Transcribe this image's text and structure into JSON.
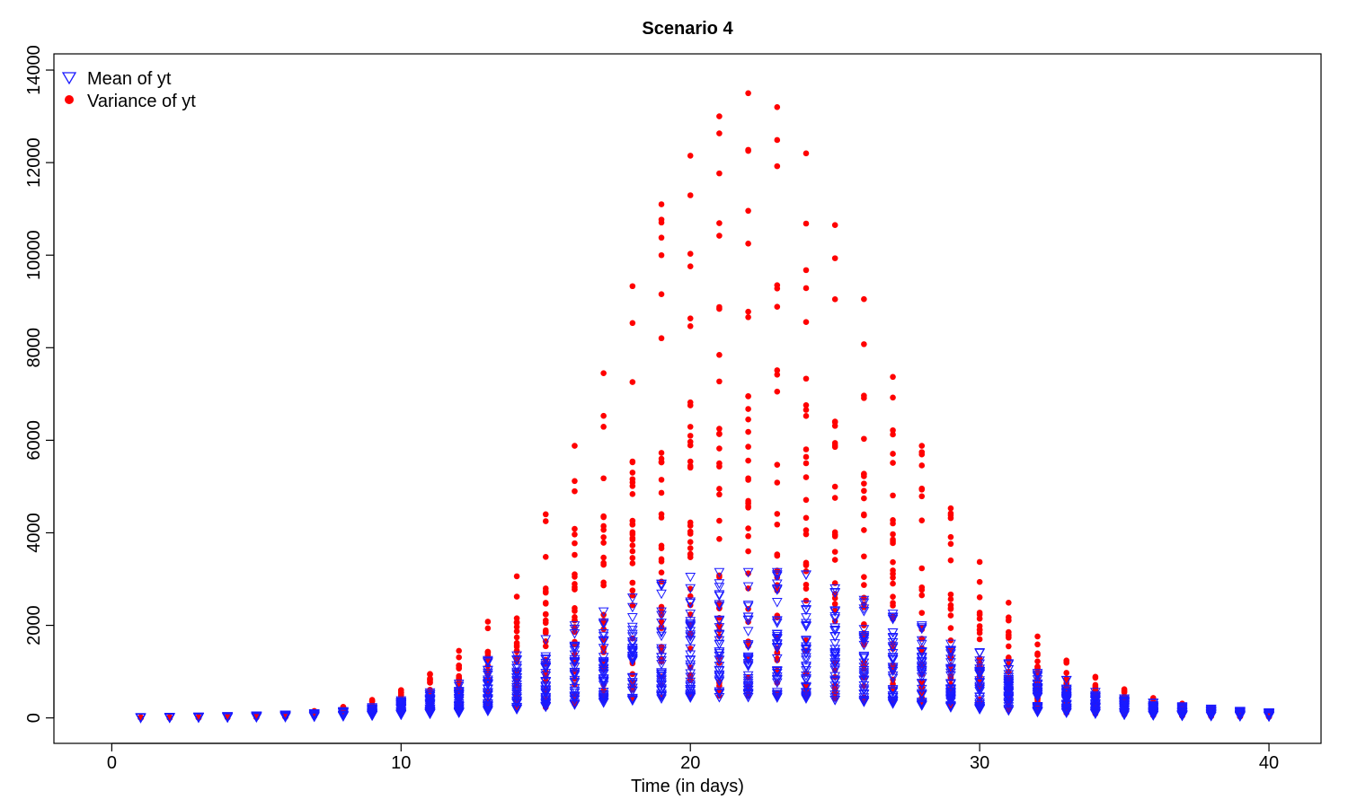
{
  "chart_data": {
    "type": "scatter",
    "title": "Scenario 4",
    "xlabel": "Time (in days)",
    "ylabel": "",
    "xlim": [
      -2,
      41.8
    ],
    "ylim": [
      -550,
      14350
    ],
    "xticks": [
      0,
      10,
      20,
      30,
      40
    ],
    "yticks": [
      0,
      2000,
      4000,
      6000,
      8000,
      10000,
      12000,
      14000
    ],
    "grid": false,
    "legend_position": "top-left",
    "days": [
      1,
      2,
      3,
      4,
      5,
      6,
      7,
      8,
      9,
      10,
      11,
      12,
      13,
      14,
      15,
      16,
      17,
      18,
      19,
      20,
      21,
      22,
      23,
      24,
      25,
      26,
      27,
      28,
      29,
      30,
      31,
      32,
      33,
      34,
      35,
      36,
      37,
      38,
      39,
      40
    ],
    "series": [
      {
        "name": "Mean of yt",
        "marker": "triangle-down-open",
        "color": "#1a1aff",
        "min": [
          5,
          6,
          8,
          11,
          15,
          20,
          28,
          38,
          52,
          70,
          90,
          115,
          150,
          190,
          240,
          290,
          330,
          380,
          420,
          440,
          450,
          450,
          440,
          420,
          390,
          350,
          310,
          270,
          230,
          190,
          160,
          130,
          110,
          90,
          70,
          55,
          45,
          40,
          35,
          30
        ],
        "max": [
          15,
          20,
          25,
          35,
          50,
          70,
          100,
          140,
          230,
          380,
          550,
          740,
          1250,
          1350,
          1700,
          2000,
          2300,
          2600,
          2900,
          3050,
          3150,
          3150,
          3150,
          3100,
          2800,
          2550,
          2250,
          2000,
          1600,
          1420,
          1180,
          970,
          820,
          560,
          420,
          330,
          250,
          200,
          150,
          120
        ],
        "dense_max": [
          12,
          18,
          25,
          35,
          50,
          70,
          100,
          140,
          200,
          290,
          400,
          520,
          780,
          930,
          1100,
          1300,
          1450,
          1650,
          1800,
          2000,
          2050,
          2100,
          2100,
          2000,
          1900,
          1750,
          1550,
          1400,
          1200,
          1000,
          800,
          650,
          550,
          450,
          350,
          270,
          210,
          170,
          130,
          110
        ]
      },
      {
        "name": "Variance of yt",
        "marker": "filled-circle",
        "color": "#ff0000",
        "min": [
          2,
          3,
          5,
          8,
          12,
          20,
          35,
          55,
          90,
          130,
          160,
          170,
          180,
          200,
          230,
          300,
          380,
          420,
          450,
          470,
          480,
          480,
          470,
          450,
          420,
          380,
          340,
          290,
          250,
          210,
          170,
          140,
          110,
          90,
          70,
          55,
          45,
          35,
          30,
          25
        ],
        "max": [
          10,
          15,
          20,
          35,
          55,
          90,
          150,
          240,
          390,
          600,
          950,
          1450,
          2080,
          3060,
          4400,
          5880,
          7450,
          9330,
          11100,
          12150,
          13000,
          13500,
          13200,
          12200,
          10650,
          9050,
          7370,
          5880,
          4530,
          3370,
          2490,
          1760,
          1240,
          890,
          620,
          430,
          310,
          220,
          160,
          120
        ],
        "dense_max": [
          8,
          12,
          18,
          30,
          45,
          75,
          120,
          200,
          300,
          450,
          600,
          850,
          1250,
          1700,
          2350,
          3050,
          3900,
          4850,
          5600,
          6250,
          6800,
          6950,
          6800,
          6500,
          5850,
          5050,
          4200,
          3250,
          2550,
          1900,
          1400,
          1050,
          780,
          560,
          400,
          290,
          210,
          160,
          120,
          90
        ]
      }
    ]
  }
}
